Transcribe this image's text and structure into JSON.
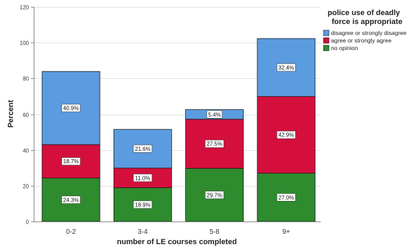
{
  "chart_data": {
    "type": "bar",
    "stacked": true,
    "title": "",
    "xlabel": "number of LE courses completed",
    "ylabel": "Percent",
    "ylim": [
      0,
      120
    ],
    "yticks": [
      0,
      20,
      40,
      60,
      80,
      100,
      120
    ],
    "grid": "horizontal",
    "categories": [
      "0-2",
      "3-4",
      "5-8",
      "9+"
    ],
    "legend": {
      "title_lines": [
        "police use of deadly",
        "force is appropriate"
      ],
      "placement": "top-right"
    },
    "series": [
      {
        "name": "no opinion",
        "color": "#2e8b2e",
        "values": [
          24.3,
          18.9,
          29.7,
          27.0
        ],
        "labels": [
          "24.3%",
          "18.9%",
          "29.7%",
          "27.0%"
        ]
      },
      {
        "name": "agree or strongly agree",
        "color": "#d40f3c",
        "values": [
          18.7,
          11.0,
          27.5,
          42.9
        ],
        "labels": [
          "18.7%",
          "11.0%",
          "27.5%",
          "42.9%"
        ]
      },
      {
        "name": "disagree or strongly disagree",
        "color": "#5b9bdf",
        "values": [
          40.9,
          21.6,
          5.4,
          32.4
        ],
        "labels": [
          "40.9%",
          "21.6%",
          "5.4%",
          "32.4%"
        ]
      }
    ],
    "legend_order": [
      2,
      1,
      0
    ]
  }
}
